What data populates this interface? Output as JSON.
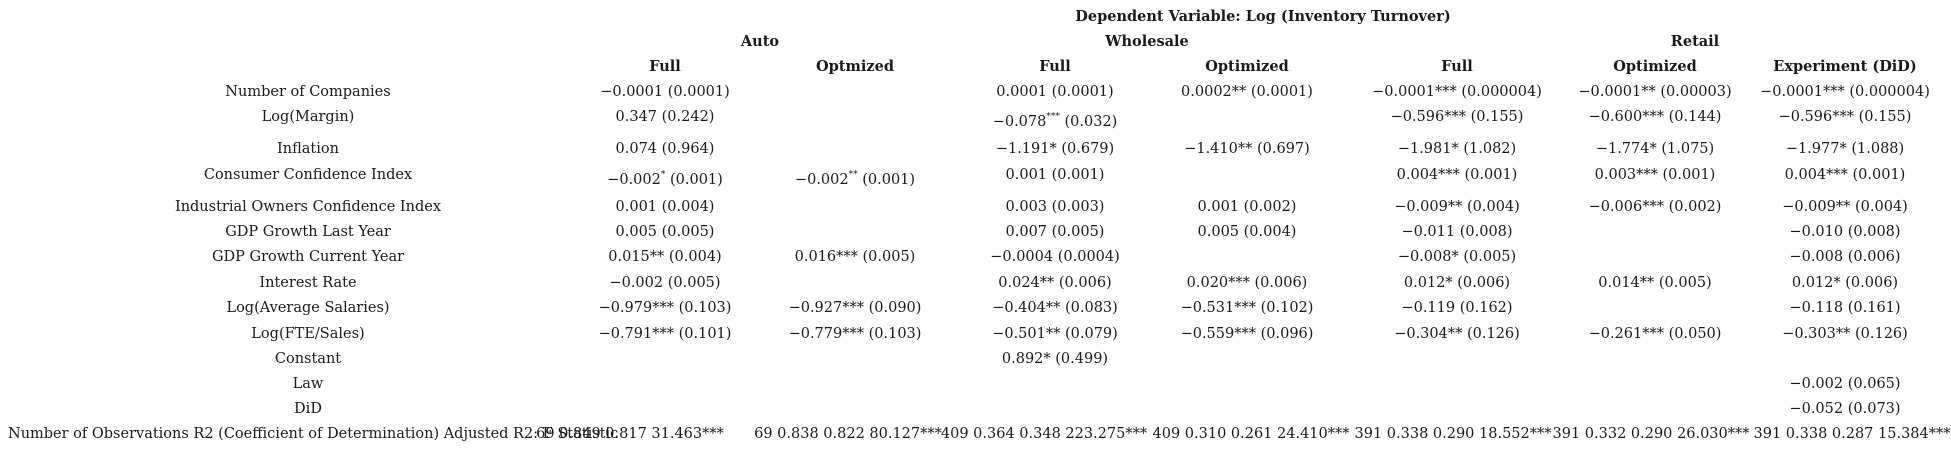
{
  "header": {
    "dependent_variable": "Dependent Variable: Log (Inventory Turnover)",
    "groups": [
      "Auto",
      "Wholesale",
      "Retail"
    ],
    "columns": [
      "Full",
      "Optmized",
      "Full",
      "Optimized",
      "Full",
      "Optimized",
      "Experiment (DiD)"
    ]
  },
  "rows": [
    {
      "label": "Number of Companies",
      "cells": [
        "−0.0001 (0.0001)",
        "",
        "0.0001 (0.0001)",
        "0.0002** (0.0001)",
        "−0.0001*** (0.000004)",
        "−0.0001** (0.00003)",
        "−0.0001*** (0.000004)"
      ]
    },
    {
      "label": "Log(Margin)",
      "cells": [
        "0.347 (0.242)",
        "",
        "−0.078*** (0.032)",
        "",
        "−0.596*** (0.155)",
        "−0.600*** (0.144)",
        "−0.596*** (0.155)"
      ]
    },
    {
      "label": "Inflation",
      "cells": [
        "0.074 (0.964)",
        "",
        "−1.191* (0.679)",
        "−1.410** (0.697)",
        "−1.981* (1.082)",
        "−1.774* (1.075)",
        "−1.977* (1.088)"
      ]
    },
    {
      "label": "Consumer Confidence Index",
      "cells": [
        "−0.002* (0.001)",
        "−0.002** (0.001)",
        "0.001 (0.001)",
        "",
        "0.004*** (0.001)",
        "0.003*** (0.001)",
        "0.004*** (0.001)"
      ]
    },
    {
      "label": "Industrial Owners Confidence Index",
      "cells": [
        "0.001 (0.004)",
        "",
        "0.003 (0.003)",
        "0.001 (0.002)",
        "−0.009** (0.004)",
        "−0.006*** (0.002)",
        "−0.009** (0.004)"
      ]
    },
    {
      "label": "GDP Growth Last Year",
      "cells": [
        "0.005 (0.005)",
        "",
        "0.007 (0.005)",
        "0.005 (0.004)",
        "−0.011 (0.008)",
        "",
        "−0.010 (0.008)"
      ]
    },
    {
      "label": "GDP Growth Current Year",
      "cells": [
        "0.015** (0.004)",
        "0.016*** (0.005)",
        "−0.0004 (0.0004)",
        "",
        "−0.008* (0.005)",
        "",
        "−0.008 (0.006)"
      ]
    },
    {
      "label": "Interest Rate",
      "cells": [
        "−0.002 (0.005)",
        "",
        "0.024** (0.006)",
        "0.020*** (0.006)",
        "0.012* (0.006)",
        "0.014** (0.005)",
        "0.012* (0.006)"
      ]
    },
    {
      "label": "Log(Average Salaries)",
      "cells": [
        "−0.979*** (0.103)",
        "−0.927*** (0.090)",
        "−0.404** (0.083)",
        "−0.531*** (0.102)",
        "−0.119 (0.162)",
        "",
        "−0.118 (0.161)"
      ]
    },
    {
      "label": "Log(FTE/Sales)",
      "cells": [
        "−0.791*** (0.101)",
        "−0.779*** (0.103)",
        "−0.501** (0.079)",
        "−0.559*** (0.096)",
        "−0.304** (0.126)",
        "−0.261*** (0.050)",
        "−0.303** (0.126)"
      ]
    },
    {
      "label": "Constant",
      "cells": [
        "",
        "",
        "0.892* (0.499)",
        "",
        "",
        "",
        ""
      ]
    },
    {
      "label": "Law",
      "cells": [
        "",
        "",
        "",
        "",
        "",
        "",
        "−0.002 (0.065)"
      ]
    },
    {
      "label": "DiD",
      "cells": [
        "",
        "",
        "",
        "",
        "",
        "",
        "−0.052 (0.073)"
      ]
    }
  ],
  "stats_row": {
    "label": "Number of Observations R2 (Coefficient of Determination) Adjusted R2: F Statistic",
    "cells": [
      "69 0.849 0.817 31.463***",
      "69 0.838 0.822 80.127***",
      "409 0.364 0.348 223.275***",
      "409 0.310 0.261 24.410***",
      "391 0.338 0.290 18.552***",
      "391 0.332 0.290 26.030***",
      "391 0.338 0.287 15.384***"
    ]
  }
}
